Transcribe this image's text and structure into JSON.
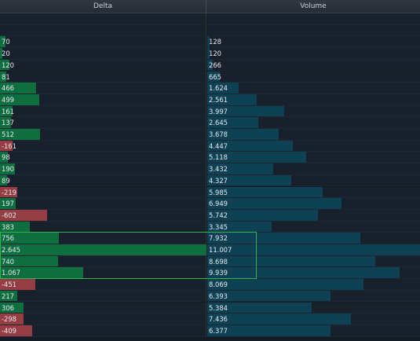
{
  "header": {
    "delta_label": "Delta",
    "volume_label": "Volume"
  },
  "colors": {
    "positive": "#0e6e3f",
    "negative": "#963c43",
    "volume": "#0f4155",
    "highlight": "#33b24d"
  },
  "scale": {
    "delta_full": 2645,
    "volume_full": 11007
  },
  "highlight_rows": [
    19,
    20,
    21,
    22
  ],
  "rows": [
    {
      "delta": "",
      "volume": "",
      "d": 0,
      "v": 0
    },
    {
      "delta": "",
      "volume": "",
      "d": 0,
      "v": 0
    },
    {
      "delta": "70",
      "volume": "128",
      "d": 70,
      "v": 128
    },
    {
      "delta": "20",
      "volume": "120",
      "d": 20,
      "v": 120
    },
    {
      "delta": "120",
      "volume": "266",
      "d": 120,
      "v": 266
    },
    {
      "delta": "81",
      "volume": "665",
      "d": 81,
      "v": 665
    },
    {
      "delta": "466",
      "volume": "1.624",
      "d": 466,
      "v": 1624
    },
    {
      "delta": "499",
      "volume": "2.561",
      "d": 499,
      "v": 2561
    },
    {
      "delta": "161",
      "volume": "3.997",
      "d": 161,
      "v": 3997
    },
    {
      "delta": "137",
      "volume": "2.645",
      "d": 137,
      "v": 2645
    },
    {
      "delta": "512",
      "volume": "3.678",
      "d": 512,
      "v": 3678
    },
    {
      "delta": "-161",
      "volume": "4.447",
      "d": -161,
      "v": 4447
    },
    {
      "delta": "98",
      "volume": "5.118",
      "d": 98,
      "v": 5118
    },
    {
      "delta": "190",
      "volume": "3.432",
      "d": 190,
      "v": 3432
    },
    {
      "delta": "89",
      "volume": "4.327",
      "d": 89,
      "v": 4327
    },
    {
      "delta": "-219",
      "volume": "5.985",
      "d": -219,
      "v": 5985
    },
    {
      "delta": "197",
      "volume": "6.949",
      "d": 197,
      "v": 6949
    },
    {
      "delta": "-602",
      "volume": "5.742",
      "d": -602,
      "v": 5742
    },
    {
      "delta": "383",
      "volume": "3.345",
      "d": 383,
      "v": 3345
    },
    {
      "delta": "756",
      "volume": "7.932",
      "d": 756,
      "v": 7932
    },
    {
      "delta": "2.645",
      "volume": "11.007",
      "d": 2645,
      "v": 11007
    },
    {
      "delta": "740",
      "volume": "8.698",
      "d": 740,
      "v": 8698
    },
    {
      "delta": "1.067",
      "volume": "9.939",
      "d": 1067,
      "v": 9939
    },
    {
      "delta": "-451",
      "volume": "8.069",
      "d": -451,
      "v": 8069
    },
    {
      "delta": "217",
      "volume": "6.393",
      "d": 217,
      "v": 6393
    },
    {
      "delta": "306",
      "volume": "5.384",
      "d": 306,
      "v": 5384
    },
    {
      "delta": "-298",
      "volume": "7.436",
      "d": -298,
      "v": 7436
    },
    {
      "delta": "-409",
      "volume": "6.377",
      "d": -409,
      "v": 6377
    }
  ]
}
